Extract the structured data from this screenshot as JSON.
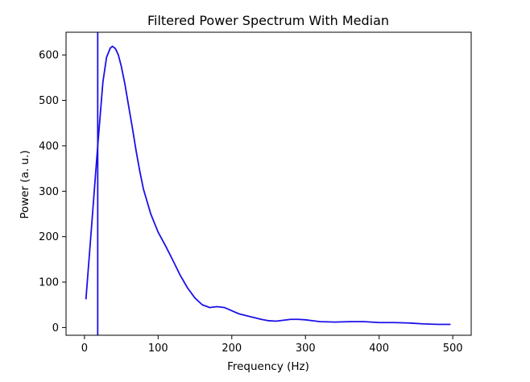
{
  "chart_data": {
    "type": "line",
    "title": "Filtered Power Spectrum With Median",
    "xlabel": "Frequency (Hz)",
    "ylabel": "Power (a. u.)",
    "xlim": [
      -25,
      525
    ],
    "ylim": [
      -17,
      650
    ],
    "xticks": [
      0,
      100,
      200,
      300,
      400,
      500
    ],
    "yticks": [
      0,
      100,
      200,
      300,
      400,
      500,
      600
    ],
    "grid": false,
    "line_color": "#1a10e8",
    "median_frequency": 18,
    "series": [
      {
        "x": [
          2,
          10,
          18,
          25,
          30,
          35,
          38,
          42,
          46,
          50,
          55,
          60,
          65,
          70,
          75,
          80,
          90,
          100,
          110,
          120,
          130,
          140,
          150,
          160,
          170,
          180,
          190,
          200,
          210,
          220,
          230,
          240,
          250,
          260,
          270,
          280,
          290,
          300,
          310,
          320,
          340,
          360,
          380,
          400,
          420,
          440,
          460,
          480,
          497
        ],
        "values": [
          62,
          230,
          400,
          540,
          595,
          615,
          619,
          614,
          600,
          575,
          535,
          487,
          440,
          390,
          345,
          305,
          250,
          210,
          180,
          148,
          115,
          87,
          65,
          50,
          44,
          46,
          44,
          37,
          30,
          26,
          22,
          18,
          15,
          14,
          16,
          18,
          18,
          17,
          15,
          13,
          12,
          13,
          13,
          11,
          11,
          10,
          8,
          7,
          7
        ]
      }
    ]
  }
}
